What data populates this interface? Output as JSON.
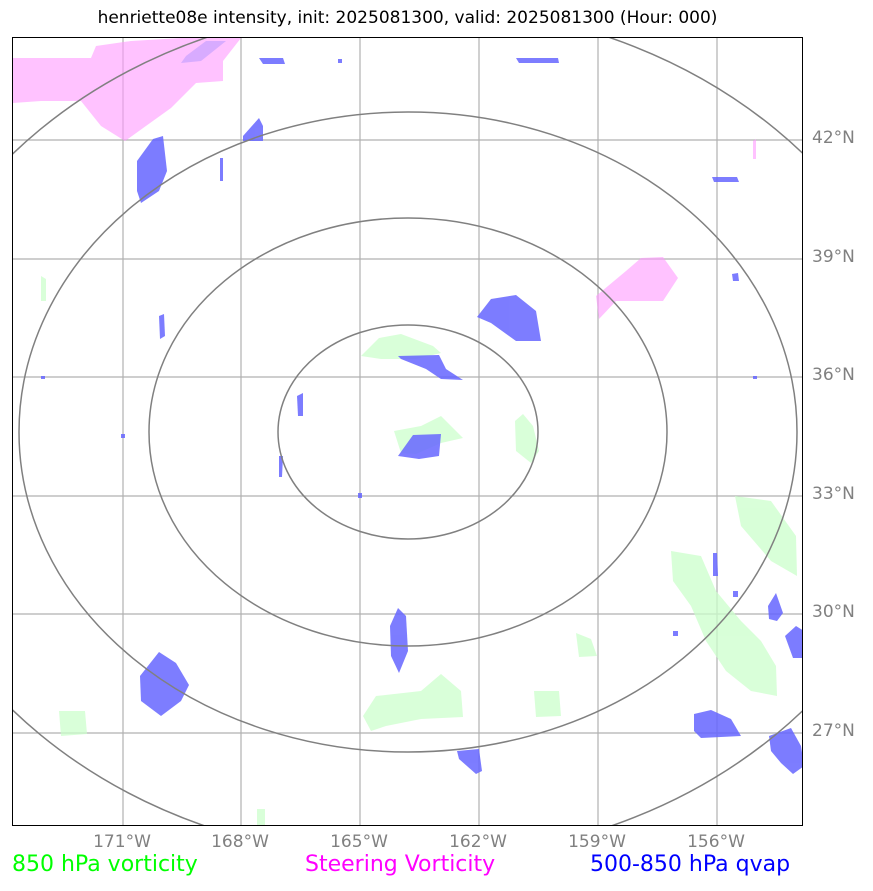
{
  "title": "henriette08e intensity, init: 2025081300, valid: 2025081300 (Hour: 000)",
  "map": {
    "lat_labels": [
      "42°N",
      "39°N",
      "36°N",
      "33°N",
      "30°N",
      "27°N"
    ],
    "lon_labels": [
      "171°W",
      "168°W",
      "165°W",
      "162°W",
      "159°W",
      "156°W"
    ],
    "center": {
      "lat": 34.9,
      "lon": -163.7
    },
    "range_rings": 4,
    "colors": {
      "grid": "#b0b0b0",
      "rings": "#808080",
      "vorticity_850": "#ccffcc",
      "steering_vorticity": "#ff99ff",
      "qvap_500_850": "#6666ff"
    }
  },
  "legend": {
    "vorticity_850": {
      "label": "850 hPa vorticity",
      "color": "#00ff00"
    },
    "steering": {
      "label": "Steering Vorticity",
      "color": "#ff00ff"
    },
    "qvap": {
      "label": "500-850 hPa qvap",
      "color": "#0000ff"
    }
  }
}
